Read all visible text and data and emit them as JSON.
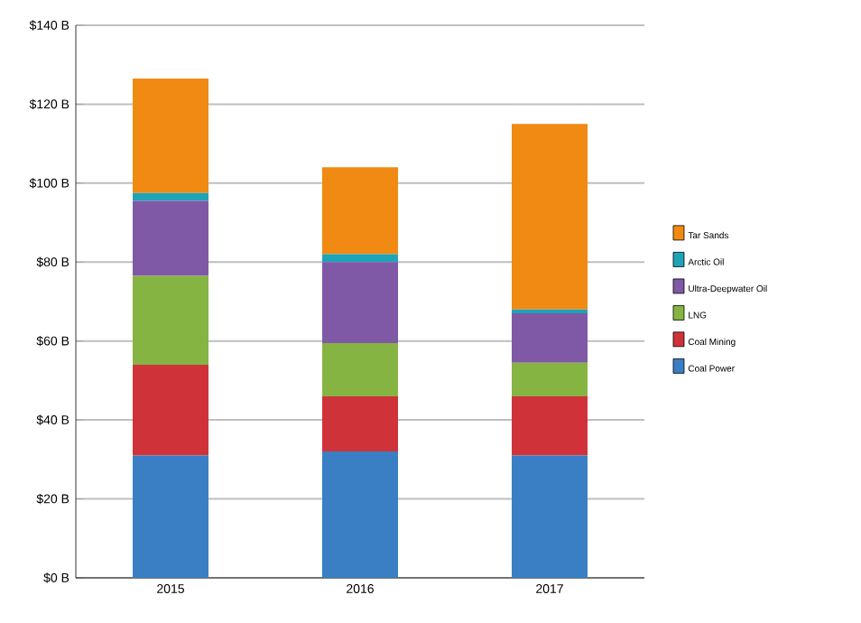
{
  "chart_data": {
    "type": "bar",
    "stacked": true,
    "categories": [
      "2015",
      "2016",
      "2017"
    ],
    "series": [
      {
        "name": "Coal Power",
        "color": "#3a7fc4",
        "values": [
          31,
          32,
          31
        ]
      },
      {
        "name": "Coal Mining",
        "color": "#d0323a",
        "values": [
          23,
          14,
          15
        ]
      },
      {
        "name": "LNG",
        "color": "#86b442",
        "values": [
          22.5,
          13.5,
          8.5
        ]
      },
      {
        "name": "Ultra-Deepwater Oil",
        "color": "#7f58a6",
        "values": [
          19,
          20.5,
          12.5
        ]
      },
      {
        "name": "Arctic Oil",
        "color": "#1fa3b8",
        "values": [
          2,
          2,
          1
        ]
      },
      {
        "name": "Tar Sands",
        "color": "#f08a12",
        "values": [
          29,
          22,
          47
        ]
      }
    ],
    "ylim": [
      0,
      140
    ],
    "yticks": [
      {
        "value": 0,
        "label": "$0 B"
      },
      {
        "value": 20,
        "label": "$20 B"
      },
      {
        "value": 40,
        "label": "$40 B"
      },
      {
        "value": 60,
        "label": "$60 B"
      },
      {
        "value": 80,
        "label": "$80 B"
      },
      {
        "value": 100,
        "label": "$100 B"
      },
      {
        "value": 120,
        "label": "$120 B"
      },
      {
        "value": 140,
        "label": "$140 B"
      }
    ],
    "grid": "y",
    "legend": "right"
  }
}
